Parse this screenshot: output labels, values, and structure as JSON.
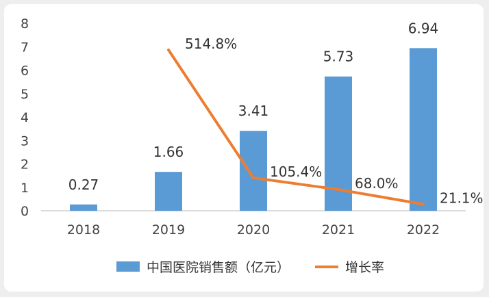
{
  "chart_data": {
    "type": "bar",
    "categories": [
      "2018",
      "2019",
      "2020",
      "2021",
      "2022"
    ],
    "ylim": [
      0,
      8
    ],
    "yticks": [
      0,
      1,
      2,
      3,
      4,
      5,
      6,
      7,
      8
    ],
    "grid": false,
    "legend_position": "bottom",
    "series": [
      {
        "name": "中国医院销售额（亿元）",
        "type": "bar",
        "color": "#5b9bd5",
        "values": [
          0.27,
          1.66,
          3.41,
          5.73,
          6.94
        ],
        "labels": [
          "0.27",
          "1.66",
          "3.41",
          "5.73",
          "6.94"
        ]
      },
      {
        "name": "增长率",
        "type": "line",
        "color": "#ed7d31",
        "values_percent": [
          null,
          514.8,
          105.4,
          68.0,
          21.1
        ],
        "labels": [
          "",
          "514.8%",
          "105.4%",
          "68.0%",
          "21.1%"
        ]
      }
    ]
  }
}
